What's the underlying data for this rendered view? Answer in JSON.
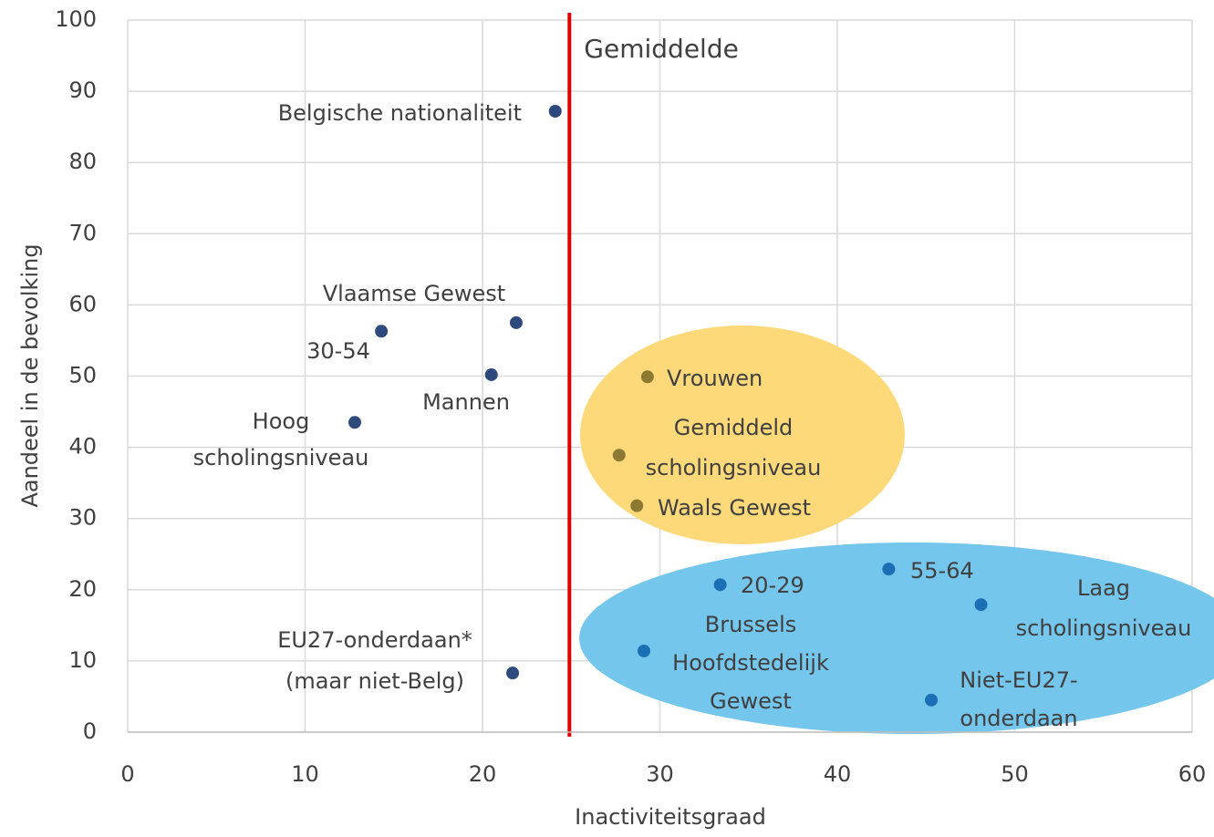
{
  "chart_data": {
    "type": "scatter",
    "x_label": "Inactiviteitsgraad",
    "y_label": "Aandeel in de bevolking",
    "xlim": [
      0,
      60
    ],
    "xticks": [
      0,
      10,
      20,
      30,
      40,
      50,
      60
    ],
    "ylim": [
      0,
      100
    ],
    "yticks": [
      0,
      10,
      20,
      30,
      40,
      50,
      60,
      70,
      80,
      90,
      100
    ],
    "grid": true,
    "reference_line": {
      "x": 24.9,
      "label": "Gemiddelde",
      "color": "#e00000"
    },
    "points": [
      {
        "label": [
          "Belgische nationaliteit"
        ],
        "x": 24.1,
        "y": 87.2,
        "color": "#2e4a7d",
        "label_color": "#404040"
      },
      {
        "label": [
          "Vlaamse Gewest"
        ],
        "x": 21.9,
        "y": 57.5,
        "color": "#2e4a7d",
        "label_color": "#404040"
      },
      {
        "label": [
          "30-54"
        ],
        "x": 14.3,
        "y": 56.3,
        "color": "#2e4a7d",
        "label_color": "#404040"
      },
      {
        "label": [
          "Mannen"
        ],
        "x": 20.5,
        "y": 50.2,
        "color": "#2e4a7d",
        "label_color": "#404040"
      },
      {
        "label": [
          "Hoog",
          "scholingsniveau"
        ],
        "x": 12.8,
        "y": 43.5,
        "color": "#2e4a7d",
        "label_color": "#404040"
      },
      {
        "label": [
          "EU27-onderdaan*",
          "(maar niet-Belg)"
        ],
        "x": 21.7,
        "y": 8.3,
        "color": "#2e4a7d",
        "label_color": "#404040"
      },
      {
        "label": [
          "Vrouwen"
        ],
        "x": 29.3,
        "y": 49.9,
        "color": "#8c7a32",
        "label_color": "#8a7428"
      },
      {
        "label": [
          "Gemiddeld",
          "scholingsniveau"
        ],
        "x": 27.7,
        "y": 38.9,
        "color": "#8c7a32",
        "label_color": "#8a7428"
      },
      {
        "label": [
          "Waals Gewest"
        ],
        "x": 28.7,
        "y": 31.8,
        "color": "#8c7a32",
        "label_color": "#8a7428"
      },
      {
        "label": [
          "20-29"
        ],
        "x": 33.4,
        "y": 20.7,
        "color": "#1b6fb5",
        "label_color": "#1f6aa5"
      },
      {
        "label": [
          "55-64"
        ],
        "x": 42.9,
        "y": 22.9,
        "color": "#1b6fb5",
        "label_color": "#1f6aa5"
      },
      {
        "label": [
          "Laag",
          "scholingsniveau"
        ],
        "x": 48.1,
        "y": 17.9,
        "color": "#1b6fb5",
        "label_color": "#1f6aa5"
      },
      {
        "label": [
          "Brussels",
          "Hoofdstedelijk",
          "Gewest"
        ],
        "x": 29.1,
        "y": 11.4,
        "color": "#1b6fb5",
        "label_color": "#1f6aa5"
      },
      {
        "label": [
          "Niet-EU27-",
          "onderdaan"
        ],
        "x": 45.3,
        "y": 4.5,
        "color": "#1b6fb5",
        "label_color": "#1f6aa5"
      }
    ]
  }
}
